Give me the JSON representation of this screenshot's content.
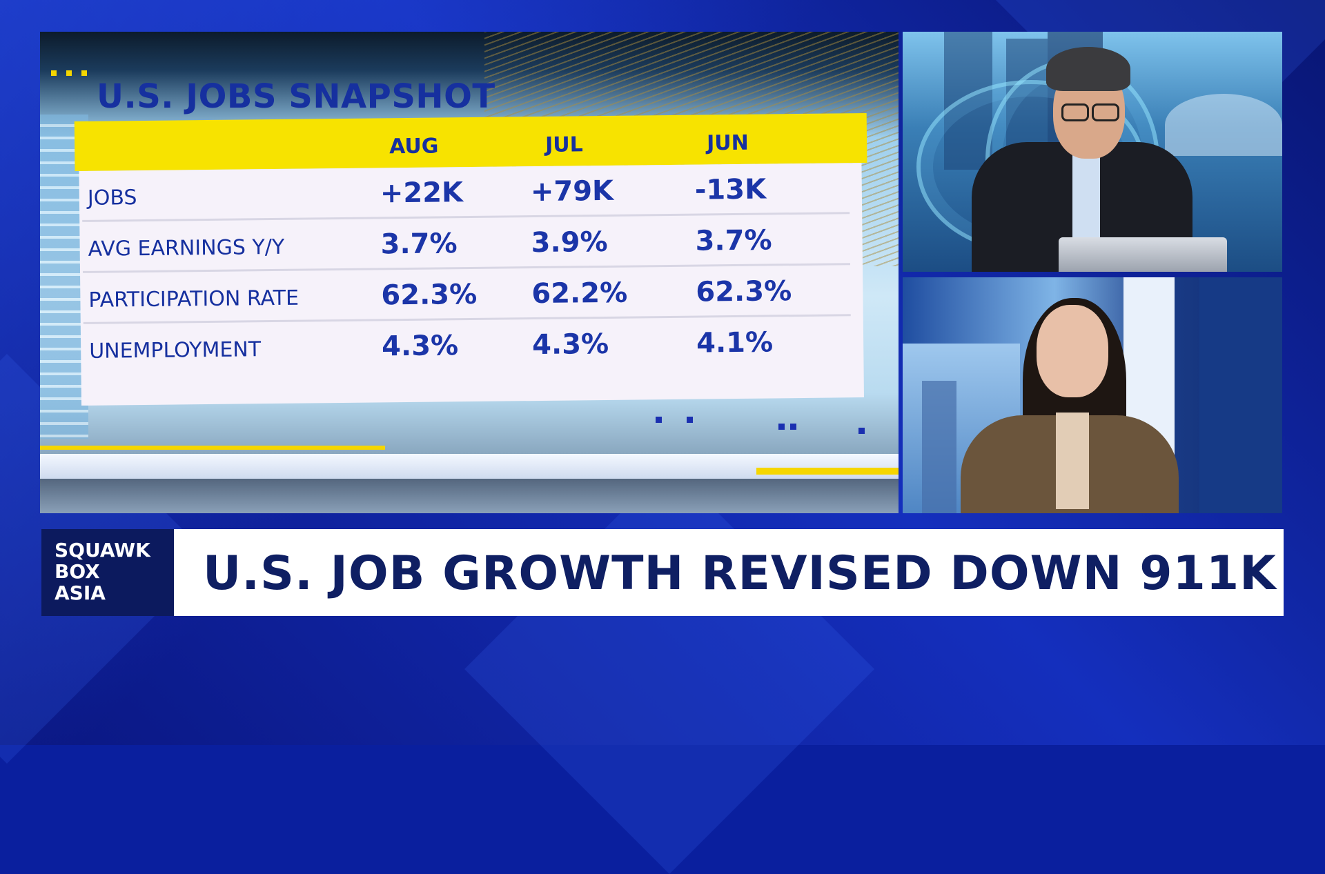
{
  "graphic": {
    "title": "U.S. JOBS SNAPSHOT",
    "columns": [
      "AUG",
      "JUL",
      "JUN"
    ],
    "rows": [
      {
        "label": "JOBS",
        "values": [
          "+22K",
          "+79K",
          "-13K"
        ]
      },
      {
        "label": "AVG EARNINGS Y/Y",
        "values": [
          "3.7%",
          "3.9%",
          "3.7%"
        ]
      },
      {
        "label": "PARTICIPATION RATE",
        "values": [
          "62.3%",
          "62.2%",
          "62.3%"
        ]
      },
      {
        "label": "UNEMPLOYMENT",
        "values": [
          "4.3%",
          "4.3%",
          "4.1%"
        ]
      }
    ]
  },
  "lower_third": {
    "brand_lines": [
      "SQUAWK",
      "BOX",
      "ASIA"
    ],
    "headline": "U.S. JOB GROWTH REVISED DOWN 911K"
  },
  "colors": {
    "background": "#0b22a8",
    "table_header": "#f7e300",
    "table_text": "#16309f",
    "brand_box": "#0c1a5e",
    "headline_text": "#0f1f63"
  }
}
